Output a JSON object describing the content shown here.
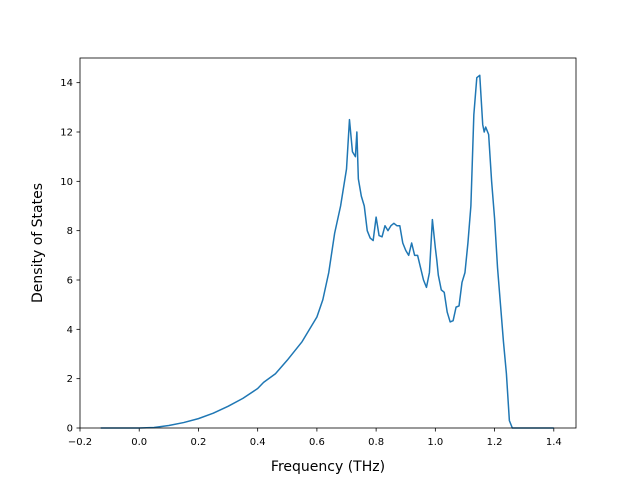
{
  "chart_data": {
    "type": "line",
    "title": "",
    "xlabel": "Frequency (THz)",
    "ylabel": "Density of States",
    "xlim": [
      -0.2,
      1.475
    ],
    "ylim": [
      0,
      15
    ],
    "xticks": [
      "−0.2",
      "0.0",
      "0.2",
      "0.4",
      "0.6",
      "0.8",
      "1.0",
      "1.2",
      "1.4"
    ],
    "yticks": [
      "0",
      "2",
      "4",
      "6",
      "8",
      "10",
      "12",
      "14"
    ],
    "grid": false,
    "line_color": "#1f77b4",
    "series": [
      {
        "x": [
          -0.13,
          0.0,
          0.05,
          0.1,
          0.15,
          0.2,
          0.25,
          0.3,
          0.35,
          0.4,
          0.42,
          0.46,
          0.5,
          0.55,
          0.6,
          0.62,
          0.64,
          0.66,
          0.68,
          0.7,
          0.71,
          0.72,
          0.73,
          0.735,
          0.74,
          0.75,
          0.76,
          0.77,
          0.78,
          0.79,
          0.8,
          0.81,
          0.82,
          0.83,
          0.84,
          0.85,
          0.86,
          0.87,
          0.88,
          0.89,
          0.9,
          0.91,
          0.92,
          0.93,
          0.94,
          0.95,
          0.96,
          0.97,
          0.98,
          0.99,
          1.0,
          1.005,
          1.01,
          1.02,
          1.03,
          1.04,
          1.05,
          1.06,
          1.07,
          1.08,
          1.09,
          1.1,
          1.11,
          1.12,
          1.13,
          1.14,
          1.15,
          1.16,
          1.165,
          1.17,
          1.18,
          1.19,
          1.2,
          1.21,
          1.22,
          1.23,
          1.24,
          1.25,
          1.26,
          1.265,
          1.27,
          1.3,
          1.35,
          1.4
        ],
        "y": [
          0,
          0,
          0.02,
          0.1,
          0.22,
          0.38,
          0.6,
          0.88,
          1.2,
          1.6,
          1.85,
          2.2,
          2.75,
          3.5,
          4.5,
          5.2,
          6.3,
          7.9,
          9.0,
          10.5,
          12.5,
          11.2,
          11.0,
          12.0,
          10.1,
          9.4,
          9.0,
          8.0,
          7.7,
          7.6,
          8.55,
          7.8,
          7.75,
          8.2,
          8.0,
          8.2,
          8.3,
          8.2,
          8.2,
          7.5,
          7.2,
          7.0,
          7.5,
          7.0,
          7.0,
          6.5,
          6.0,
          5.7,
          6.3,
          8.45,
          7.3,
          6.8,
          6.2,
          5.6,
          5.5,
          4.7,
          4.3,
          4.35,
          4.9,
          4.95,
          5.9,
          6.3,
          7.5,
          9.0,
          12.7,
          14.2,
          14.3,
          12.3,
          12.0,
          12.2,
          11.9,
          10.0,
          8.5,
          6.5,
          5.0,
          3.5,
          2.2,
          0.3,
          0,
          0,
          0,
          0,
          0,
          0
        ]
      }
    ]
  }
}
